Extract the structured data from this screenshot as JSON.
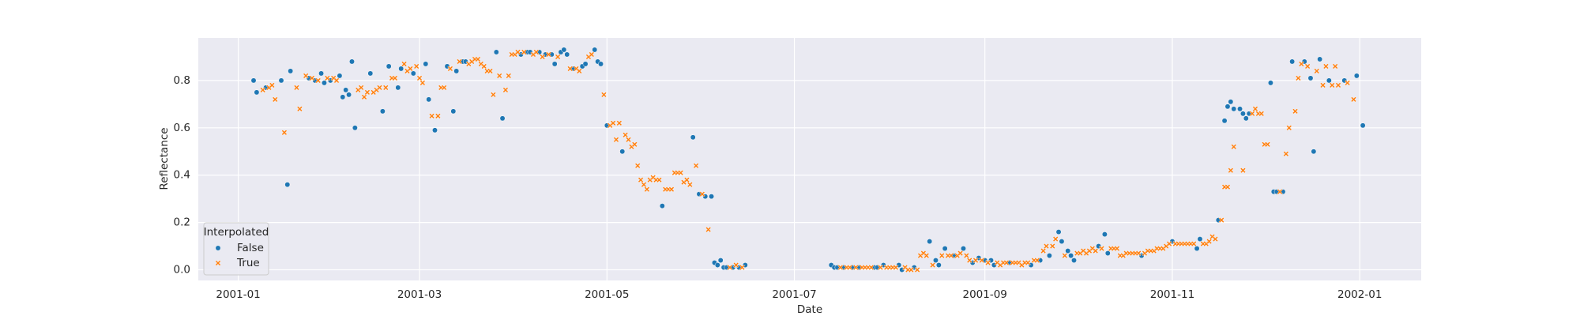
{
  "chart_data": {
    "type": "scatter",
    "xlabel": "Date",
    "ylabel": "Reflectance",
    "xlim": [
      "2000-12-19",
      "2002-01-21"
    ],
    "ylim": [
      -0.045,
      0.98
    ],
    "xticks": [
      {
        "value": "2001-01-01",
        "label": "2001-01"
      },
      {
        "value": "2001-03-01",
        "label": "2001-03"
      },
      {
        "value": "2001-05-01",
        "label": "2001-05"
      },
      {
        "value": "2001-07-01",
        "label": "2001-07"
      },
      {
        "value": "2001-09-01",
        "label": "2001-09"
      },
      {
        "value": "2001-11-01",
        "label": "2001-11"
      },
      {
        "value": "2002-01-01",
        "label": "2002-01"
      }
    ],
    "yticks": [
      {
        "value": 0,
        "label": "0.0"
      },
      {
        "value": 0.2,
        "label": "0.2"
      },
      {
        "value": 0.4,
        "label": "0.4"
      },
      {
        "value": 0.6,
        "label": "0.6"
      },
      {
        "value": 0.8,
        "label": "0.8"
      }
    ],
    "grid": true,
    "legend": "lower left",
    "legend_title": "Interpolated",
    "series": [
      {
        "name": "False",
        "color": "#1f77b4",
        "marker": "o",
        "x": [
          "2001-01-06",
          "2001-01-07",
          "2001-01-10",
          "2001-01-15",
          "2001-01-17",
          "2001-01-18",
          "2001-01-24",
          "2001-01-26",
          "2001-01-28",
          "2001-01-29",
          "2001-01-31",
          "2001-02-03",
          "2001-02-04",
          "2001-02-05",
          "2001-02-06",
          "2001-02-07",
          "2001-02-08",
          "2001-02-13",
          "2001-02-17",
          "2001-02-19",
          "2001-02-22",
          "2001-02-23",
          "2001-02-27",
          "2001-03-03",
          "2001-03-04",
          "2001-03-06",
          "2001-03-10",
          "2001-03-12",
          "2001-03-13",
          "2001-03-15",
          "2001-03-16",
          "2001-03-26",
          "2001-03-28",
          "2001-04-03",
          "2001-04-05",
          "2001-04-06",
          "2001-04-09",
          "2001-04-11",
          "2001-04-13",
          "2001-04-14",
          "2001-04-16",
          "2001-04-17",
          "2001-04-18",
          "2001-04-20",
          "2001-04-23",
          "2001-04-24",
          "2001-04-27",
          "2001-04-28",
          "2001-04-29",
          "2001-05-01",
          "2001-05-06",
          "2001-05-19",
          "2001-05-29",
          "2001-05-31",
          "2001-06-02",
          "2001-06-04",
          "2001-06-05",
          "2001-06-06",
          "2001-06-07",
          "2001-06-08",
          "2001-06-09",
          "2001-06-11",
          "2001-06-13",
          "2001-06-15",
          "2001-07-13",
          "2001-07-14",
          "2001-07-15",
          "2001-07-17",
          "2001-07-20",
          "2001-07-22",
          "2001-07-27",
          "2001-07-28",
          "2001-07-30",
          "2001-08-04",
          "2001-08-05",
          "2001-08-09",
          "2001-08-14",
          "2001-08-16",
          "2001-08-17",
          "2001-08-19",
          "2001-08-22",
          "2001-08-25",
          "2001-08-28",
          "2001-08-30",
          "2001-09-01",
          "2001-09-03",
          "2001-09-04",
          "2001-09-09",
          "2001-09-16",
          "2001-09-19",
          "2001-09-22",
          "2001-09-25",
          "2001-09-26",
          "2001-09-28",
          "2001-09-29",
          "2001-09-30",
          "2001-10-08",
          "2001-10-10",
          "2001-10-11",
          "2001-10-22",
          "2001-11-01",
          "2001-11-09",
          "2001-11-10",
          "2001-11-16",
          "2001-11-18",
          "2001-11-19",
          "2001-11-20",
          "2001-11-21",
          "2001-11-23",
          "2001-11-24",
          "2001-11-25",
          "2001-11-26",
          "2001-12-03",
          "2001-12-04",
          "2001-12-05",
          "2001-12-07",
          "2001-12-10",
          "2001-12-14",
          "2001-12-16",
          "2001-12-17",
          "2001-12-19",
          "2001-12-22",
          "2001-12-27",
          "2001-12-31",
          "2002-01-02"
        ],
        "values": [
          0.8,
          0.75,
          0.77,
          0.8,
          0.36,
          0.84,
          0.81,
          0.8,
          0.83,
          0.79,
          0.8,
          0.82,
          0.73,
          0.76,
          0.74,
          0.88,
          0.6,
          0.83,
          0.67,
          0.86,
          0.77,
          0.85,
          0.83,
          0.87,
          0.72,
          0.59,
          0.86,
          0.67,
          0.84,
          0.88,
          0.88,
          0.92,
          0.64,
          0.91,
          0.92,
          0.92,
          0.92,
          0.91,
          0.91,
          0.87,
          0.92,
          0.93,
          0.91,
          0.85,
          0.86,
          0.87,
          0.93,
          0.88,
          0.87,
          0.61,
          0.5,
          0.27,
          0.56,
          0.32,
          0.31,
          0.31,
          0.03,
          0.02,
          0.04,
          0.01,
          0.01,
          0.01,
          0.01,
          0.02,
          0.02,
          0.01,
          0.01,
          0.01,
          0.01,
          0.01,
          0.01,
          0.01,
          0.02,
          0.02,
          0.0,
          0.01,
          0.12,
          0.04,
          0.02,
          0.09,
          0.06,
          0.09,
          0.03,
          0.05,
          0.04,
          0.04,
          0.02,
          0.03,
          0.02,
          0.04,
          0.06,
          0.16,
          0.12,
          0.08,
          0.06,
          0.04,
          0.1,
          0.15,
          0.07,
          0.06,
          0.12,
          0.09,
          0.13,
          0.21,
          0.63,
          0.69,
          0.71,
          0.68,
          0.68,
          0.66,
          0.64,
          0.66,
          0.79,
          0.33,
          0.33,
          0.33,
          0.88,
          0.88,
          0.81,
          0.5,
          0.89,
          0.8,
          0.8,
          0.82,
          0.61
        ]
      },
      {
        "name": "True",
        "color": "#ff7f0e",
        "marker": "X",
        "x": [
          "2001-01-09",
          "2001-01-11",
          "2001-01-12",
          "2001-01-13",
          "2001-01-16",
          "2001-01-20",
          "2001-01-21",
          "2001-01-23",
          "2001-01-25",
          "2001-01-27",
          "2001-01-30",
          "2001-02-01",
          "2001-02-02",
          "2001-02-09",
          "2001-02-10",
          "2001-02-11",
          "2001-02-12",
          "2001-02-14",
          "2001-02-15",
          "2001-02-16",
          "2001-02-18",
          "2001-02-20",
          "2001-02-21",
          "2001-02-24",
          "2001-02-25",
          "2001-02-26",
          "2001-02-28",
          "2001-03-01",
          "2001-03-02",
          "2001-03-05",
          "2001-03-07",
          "2001-03-08",
          "2001-03-09",
          "2001-03-11",
          "2001-03-14",
          "2001-03-17",
          "2001-03-18",
          "2001-03-19",
          "2001-03-20",
          "2001-03-21",
          "2001-03-22",
          "2001-03-23",
          "2001-03-24",
          "2001-03-25",
          "2001-03-27",
          "2001-03-29",
          "2001-03-30",
          "2001-03-31",
          "2001-04-01",
          "2001-04-02",
          "2001-04-04",
          "2001-04-07",
          "2001-04-08",
          "2001-04-10",
          "2001-04-12",
          "2001-04-15",
          "2001-04-19",
          "2001-04-21",
          "2001-04-22",
          "2001-04-25",
          "2001-04-26",
          "2001-04-30",
          "2001-05-02",
          "2001-05-03",
          "2001-05-04",
          "2001-05-05",
          "2001-05-07",
          "2001-05-08",
          "2001-05-09",
          "2001-05-10",
          "2001-05-11",
          "2001-05-12",
          "2001-05-13",
          "2001-05-14",
          "2001-05-15",
          "2001-05-16",
          "2001-05-17",
          "2001-05-18",
          "2001-05-20",
          "2001-05-21",
          "2001-05-22",
          "2001-05-23",
          "2001-05-24",
          "2001-05-25",
          "2001-05-26",
          "2001-05-27",
          "2001-05-28",
          "2001-05-30",
          "2001-06-01",
          "2001-06-03",
          "2001-06-10",
          "2001-06-12",
          "2001-06-14",
          "2001-07-16",
          "2001-07-18",
          "2001-07-19",
          "2001-07-21",
          "2001-07-23",
          "2001-07-24",
          "2001-07-25",
          "2001-07-26",
          "2001-07-29",
          "2001-07-31",
          "2001-08-01",
          "2001-08-02",
          "2001-08-03",
          "2001-08-06",
          "2001-08-07",
          "2001-08-08",
          "2001-08-10",
          "2001-08-11",
          "2001-08-12",
          "2001-08-13",
          "2001-08-15",
          "2001-08-18",
          "2001-08-20",
          "2001-08-21",
          "2001-08-23",
          "2001-08-24",
          "2001-08-26",
          "2001-08-27",
          "2001-08-29",
          "2001-08-31",
          "2001-09-02",
          "2001-09-05",
          "2001-09-06",
          "2001-09-07",
          "2001-09-08",
          "2001-09-10",
          "2001-09-11",
          "2001-09-12",
          "2001-09-13",
          "2001-09-14",
          "2001-09-15",
          "2001-09-17",
          "2001-09-18",
          "2001-09-20",
          "2001-09-21",
          "2001-09-23",
          "2001-09-24",
          "2001-09-27",
          "2001-10-01",
          "2001-10-02",
          "2001-10-03",
          "2001-10-04",
          "2001-10-05",
          "2001-10-06",
          "2001-10-07",
          "2001-10-09",
          "2001-10-12",
          "2001-10-13",
          "2001-10-14",
          "2001-10-15",
          "2001-10-16",
          "2001-10-17",
          "2001-10-18",
          "2001-10-19",
          "2001-10-20",
          "2001-10-21",
          "2001-10-23",
          "2001-10-24",
          "2001-10-25",
          "2001-10-26",
          "2001-10-27",
          "2001-10-28",
          "2001-10-29",
          "2001-10-30",
          "2001-10-31",
          "2001-11-02",
          "2001-11-03",
          "2001-11-04",
          "2001-11-05",
          "2001-11-06",
          "2001-11-07",
          "2001-11-08",
          "2001-11-11",
          "2001-11-12",
          "2001-11-13",
          "2001-11-14",
          "2001-11-15",
          "2001-11-17",
          "2001-11-18",
          "2001-11-19",
          "2001-11-20",
          "2001-11-21",
          "2001-11-24",
          "2001-11-27",
          "2001-11-28",
          "2001-11-29",
          "2001-11-30",
          "2001-12-01",
          "2001-12-02",
          "2001-12-06",
          "2001-12-08",
          "2001-12-09",
          "2001-12-11",
          "2001-12-12",
          "2001-12-13",
          "2001-12-15",
          "2001-12-18",
          "2001-12-20",
          "2001-12-21",
          "2001-12-23",
          "2001-12-24",
          "2001-12-25",
          "2001-12-28",
          "2001-12-30"
        ],
        "values": [
          0.76,
          0.77,
          0.78,
          0.72,
          0.58,
          0.77,
          0.68,
          0.82,
          0.81,
          0.8,
          0.81,
          0.81,
          0.8,
          0.76,
          0.77,
          0.73,
          0.75,
          0.75,
          0.76,
          0.77,
          0.77,
          0.81,
          0.81,
          0.87,
          0.84,
          0.85,
          0.86,
          0.81,
          0.79,
          0.65,
          0.65,
          0.77,
          0.77,
          0.85,
          0.88,
          0.87,
          0.88,
          0.89,
          0.89,
          0.87,
          0.86,
          0.84,
          0.84,
          0.74,
          0.82,
          0.76,
          0.82,
          0.91,
          0.91,
          0.92,
          0.92,
          0.91,
          0.92,
          0.9,
          0.91,
          0.9,
          0.85,
          0.85,
          0.84,
          0.9,
          0.91,
          0.74,
          0.61,
          0.62,
          0.55,
          0.62,
          0.57,
          0.55,
          0.52,
          0.53,
          0.44,
          0.38,
          0.36,
          0.34,
          0.38,
          0.39,
          0.38,
          0.38,
          0.34,
          0.34,
          0.34,
          0.41,
          0.41,
          0.41,
          0.37,
          0.38,
          0.36,
          0.44,
          0.32,
          0.17,
          0.01,
          0.02,
          0.01,
          0.01,
          0.01,
          0.01,
          0.01,
          0.01,
          0.01,
          0.01,
          0.01,
          0.01,
          0.01,
          0.01,
          0.01,
          0.01,
          0.01,
          0.0,
          0.0,
          0.0,
          0.06,
          0.07,
          0.06,
          0.02,
          0.06,
          0.06,
          0.06,
          0.06,
          0.07,
          0.06,
          0.04,
          0.04,
          0.04,
          0.03,
          0.03,
          0.02,
          0.03,
          0.03,
          0.03,
          0.03,
          0.03,
          0.02,
          0.03,
          0.03,
          0.04,
          0.04,
          0.08,
          0.1,
          0.1,
          0.13,
          0.06,
          0.07,
          0.07,
          0.08,
          0.07,
          0.08,
          0.09,
          0.08,
          0.09,
          0.09,
          0.09,
          0.09,
          0.06,
          0.06,
          0.07,
          0.07,
          0.07,
          0.07,
          0.07,
          0.07,
          0.08,
          0.08,
          0.08,
          0.09,
          0.09,
          0.09,
          0.1,
          0.11,
          0.11,
          0.11,
          0.11,
          0.11,
          0.11,
          0.11,
          0.11,
          0.11,
          0.11,
          0.12,
          0.14,
          0.13,
          0.21,
          0.35,
          0.35,
          0.42,
          0.52,
          0.42,
          0.66,
          0.68,
          0.66,
          0.66,
          0.53,
          0.53,
          0.33,
          0.49,
          0.6,
          0.67,
          0.81,
          0.87,
          0.86,
          0.84,
          0.78,
          0.86,
          0.78,
          0.86,
          0.78,
          0.79,
          0.72
        ]
      }
    ]
  }
}
